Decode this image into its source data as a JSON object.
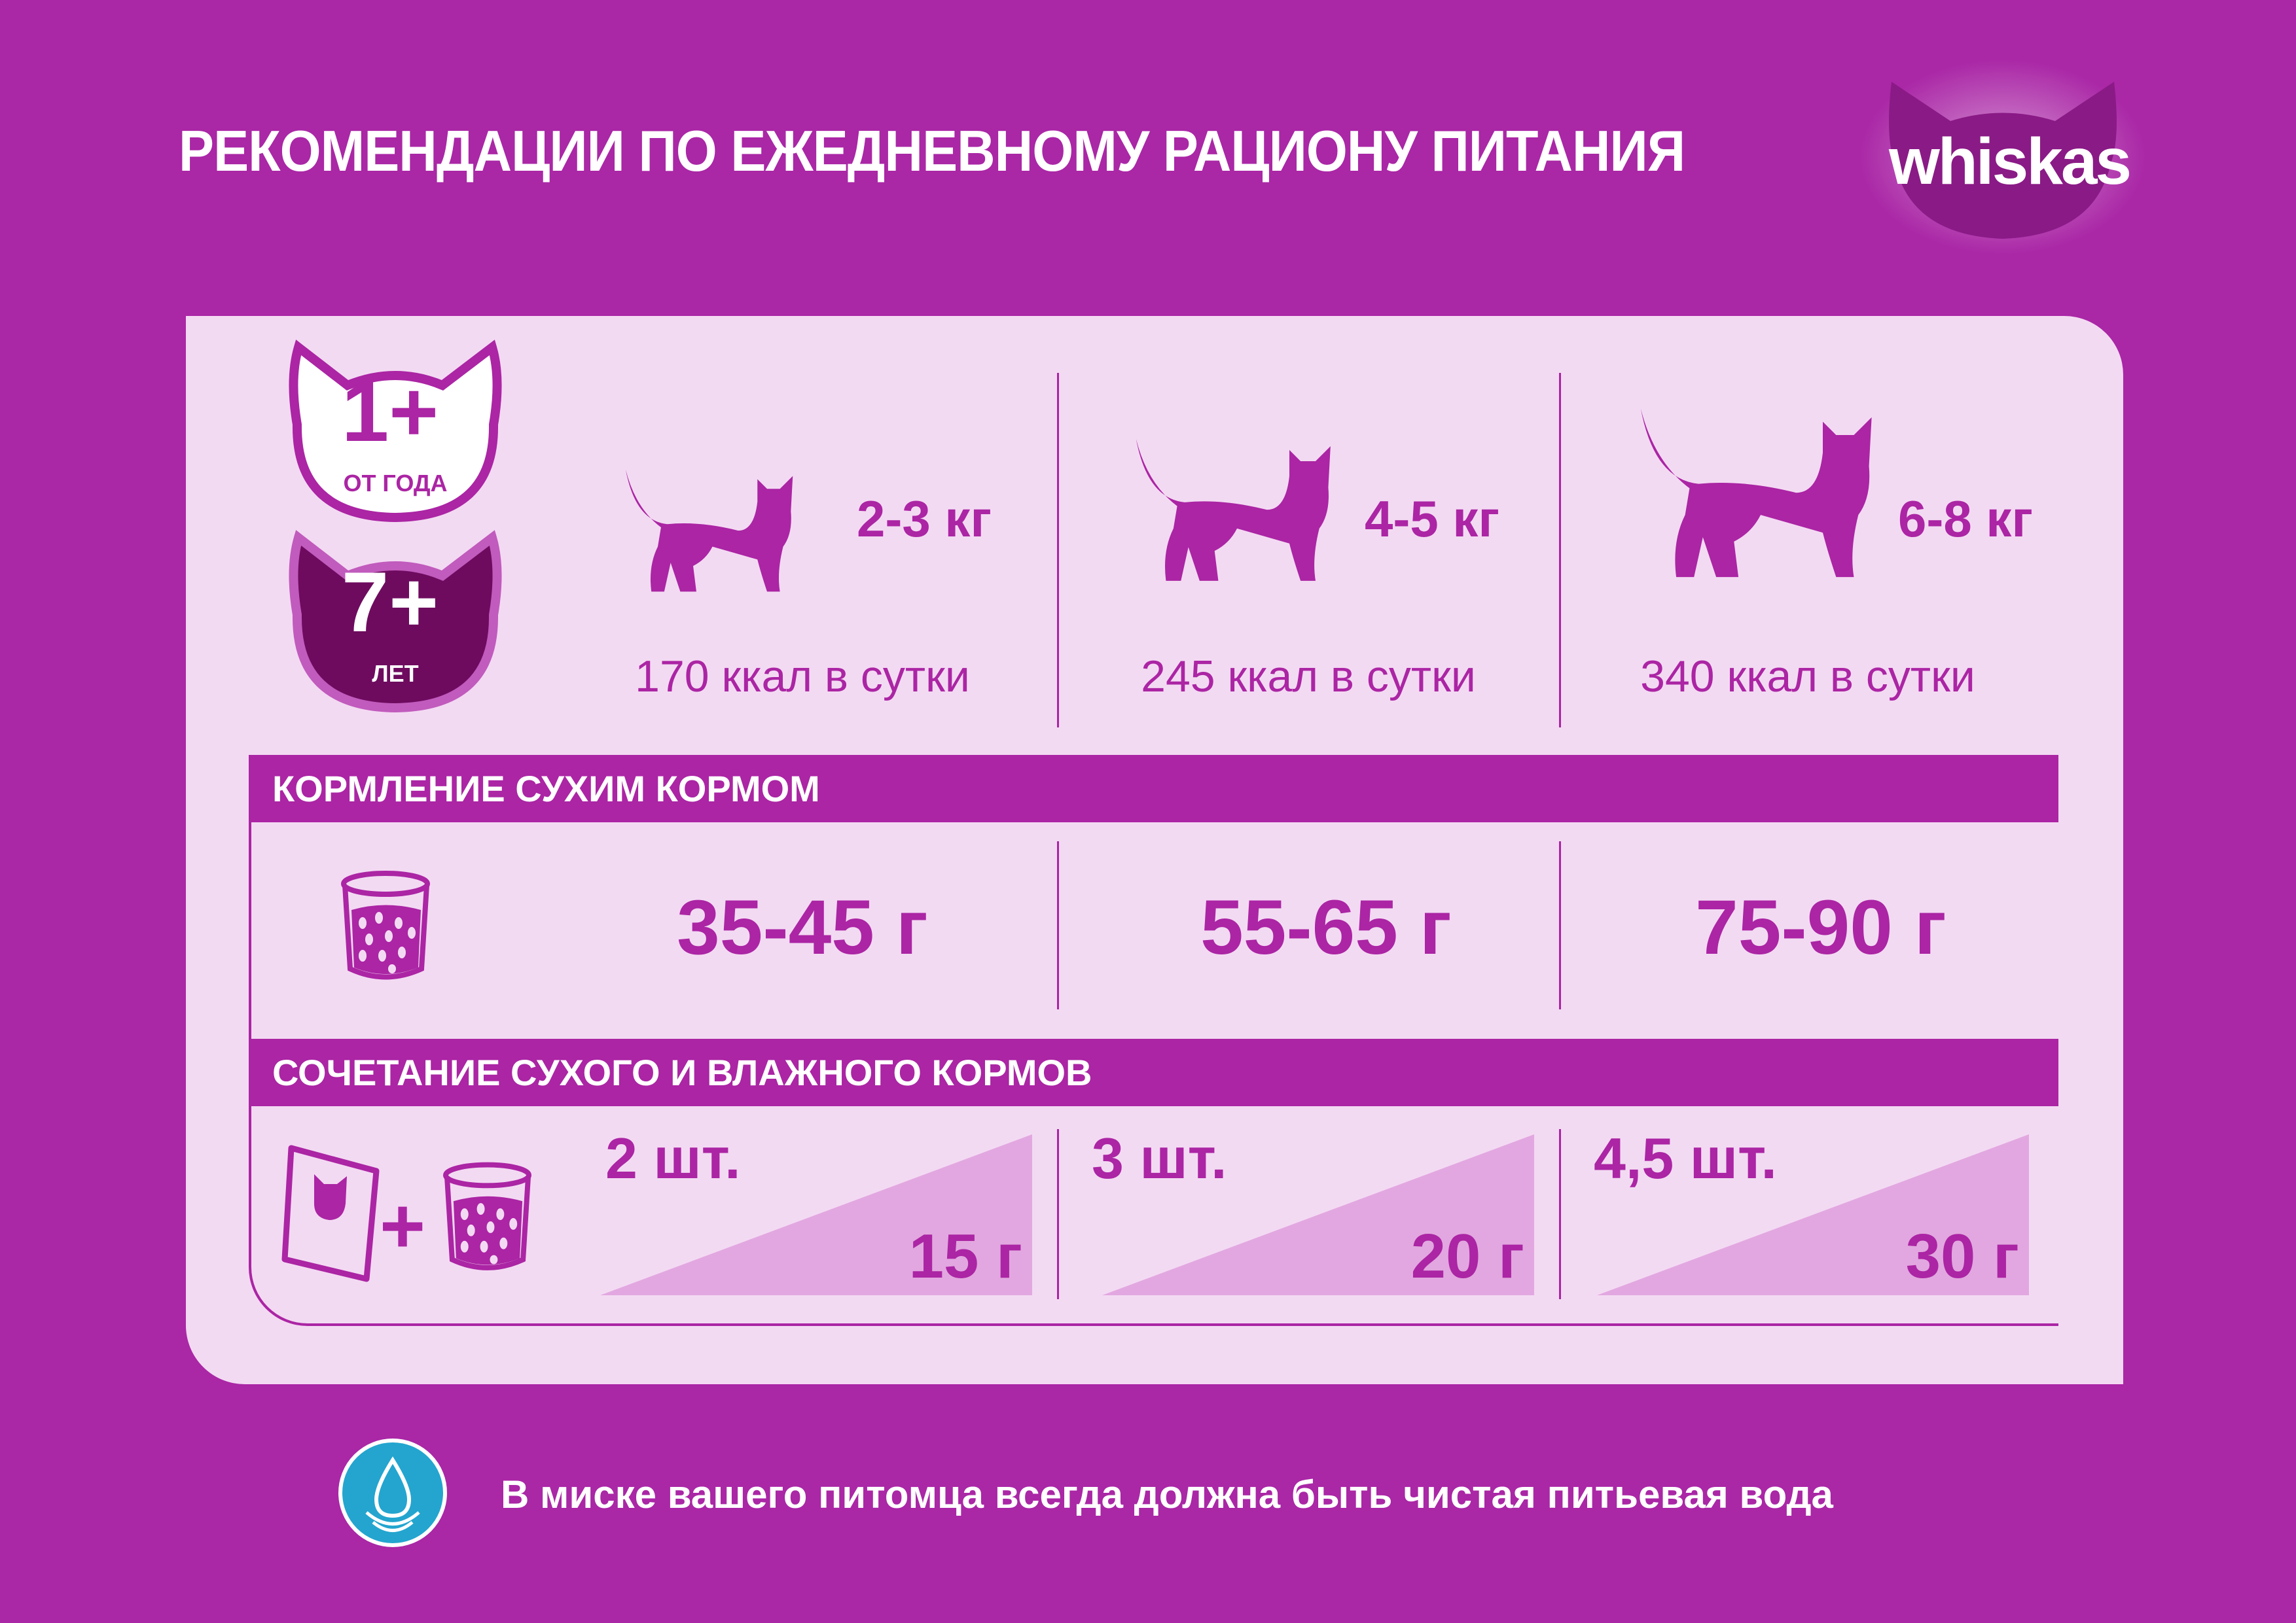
{
  "header": {
    "title": "РЕКОМЕНДАЦИИ ПО ЕЖЕДНЕВНОМУ РАЦИОНУ ПИТАНИЯ",
    "logo": "whiskas"
  },
  "badges": [
    {
      "number": "1+",
      "label": "ОТ ГОДА"
    },
    {
      "number": "7+",
      "label": "ЛЕТ"
    }
  ],
  "columns": [
    {
      "weight": "2-3 кг",
      "kcal": "170 ккал в сутки",
      "dry": "35-45 г",
      "pouches": "2 шт.",
      "dry_with_wet": "15 г"
    },
    {
      "weight": "4-5 кг",
      "kcal": "245 ккал в сутки",
      "dry": "55-65 г",
      "pouches": "3 шт.",
      "dry_with_wet": "20 г"
    },
    {
      "weight": "6-8 кг",
      "kcal": "340 ккал в сутки",
      "dry": "75-90 г",
      "pouches": "4,5 шт.",
      "dry_with_wet": "30 г"
    }
  ],
  "sections": {
    "dry": "КОРМЛЕНИЕ СУХИМ КОРМОМ",
    "mixed": "СОЧЕТАНИЕ СУХОГО И ВЛАЖНОГО КОРМОВ",
    "plus": "+"
  },
  "footer": {
    "water_note": "В миске вашего питомца всегда должна быть чистая питьевая вода",
    "icon": "water-drop-icon"
  },
  "colors": {
    "background": "#aa27a6",
    "panel": "#f3daf3",
    "accent": "#ab25a4",
    "triangle": "#e2a7e0",
    "senior_badge": "#6e0b5f",
    "water": "#23a5cf"
  }
}
